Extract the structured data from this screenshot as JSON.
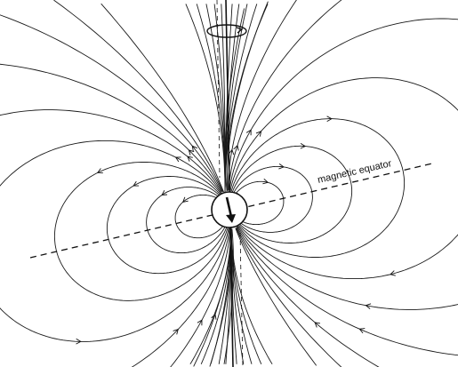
{
  "labels": {
    "equator": "magnetic equator"
  },
  "icons": {
    "rotation": "rotation-arrow-icon",
    "magnet": "dipole-arrow-icon"
  }
}
